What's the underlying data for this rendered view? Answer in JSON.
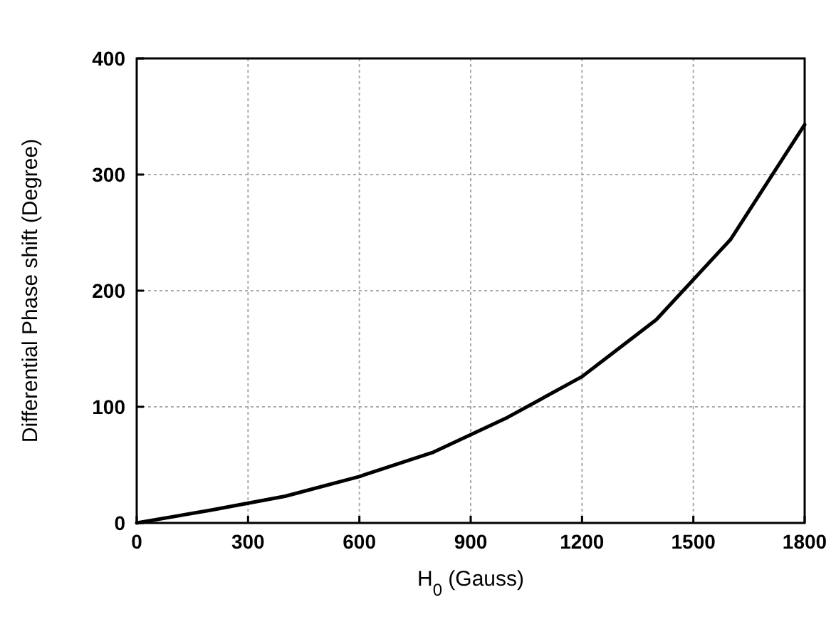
{
  "chart_data": {
    "type": "line",
    "xlabel": "H$_{0}$ (Gauss)",
    "ylabel": "Differential Phase shift (Degree)",
    "x": [
      0,
      200,
      400,
      600,
      800,
      1000,
      1200,
      1400,
      1600,
      1800
    ],
    "series": [
      {
        "color": "#000000",
        "values": [
          0,
          11,
          23,
          40,
          61,
          91,
          126,
          175,
          244,
          343
        ]
      }
    ],
    "xlim": [
      0,
      1800
    ],
    "xticks": [
      0,
      300,
      600,
      900,
      1200,
      1500,
      1800
    ],
    "ylim": [
      0,
      400
    ],
    "yticks": [
      0,
      100,
      200,
      300,
      400
    ],
    "grid": true,
    "marker": "none",
    "line_style": "solid"
  }
}
